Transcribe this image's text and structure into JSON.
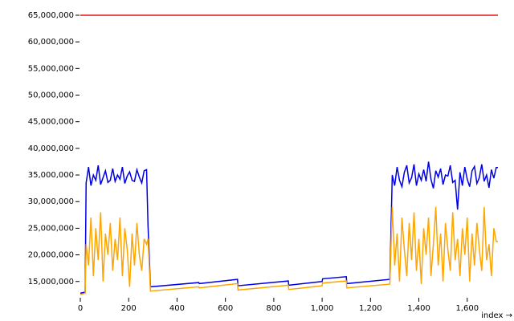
{
  "chart_data": {
    "type": "line",
    "x_label": "index →",
    "xlim": [
      0,
      1727
    ],
    "ylim": [
      12100000,
      65600000
    ],
    "xticks": [
      0,
      200,
      400,
      600,
      800,
      {
        "value": 1000,
        "label": "1,000"
      },
      {
        "value": 1200,
        "label": "1,200"
      },
      {
        "value": 1400,
        "label": "1,400"
      },
      {
        "value": 1600,
        "label": "1,600"
      }
    ],
    "yticks": [
      {
        "value": 15000000,
        "label": "15,000,000"
      },
      {
        "value": 20000000,
        "label": "20,000,000"
      },
      {
        "value": 25000000,
        "label": "25,000,000"
      },
      {
        "value": 30000000,
        "label": "30,000,000"
      },
      {
        "value": 35000000,
        "label": "35,000,000"
      },
      {
        "value": 40000000,
        "label": "40,000,000"
      },
      {
        "value": 45000000,
        "label": "45,000,000"
      },
      {
        "value": 50000000,
        "label": "50,000,000"
      },
      {
        "value": 55000000,
        "label": "55,000,000"
      },
      {
        "value": 60000000,
        "label": "60,000,000"
      },
      {
        "value": 65000000,
        "label": "65,000,000"
      }
    ],
    "series": [
      {
        "color": "#e0161c",
        "x": [
          0,
          1727
        ],
        "values": [
          65000000,
          65000000
        ]
      },
      {
        "color": "#0000e6",
        "x": [
          0,
          20,
          24,
          34,
          44,
          54,
          64,
          74,
          84,
          94,
          104,
          114,
          124,
          134,
          144,
          154,
          164,
          174,
          184,
          194,
          204,
          214,
          224,
          234,
          244,
          254,
          264,
          274,
          280,
          290,
          490,
          492,
          650,
          652,
          860,
          862,
          1000,
          1002,
          1100,
          1102,
          1280,
          1290,
          1300,
          1310,
          1320,
          1330,
          1340,
          1350,
          1360,
          1370,
          1380,
          1390,
          1400,
          1410,
          1420,
          1430,
          1440,
          1450,
          1460,
          1470,
          1480,
          1490,
          1500,
          1510,
          1520,
          1530,
          1540,
          1550,
          1560,
          1570,
          1580,
          1590,
          1600,
          1610,
          1620,
          1630,
          1640,
          1650,
          1660,
          1670,
          1680,
          1690,
          1700,
          1710,
          1720,
          1727
        ],
        "values": [
          12800000,
          13000000,
          33500000,
          36500000,
          33000000,
          35000000,
          34000000,
          36800000,
          33200000,
          34500000,
          35800000,
          33600000,
          34000000,
          36200000,
          33800000,
          35000000,
          34200000,
          36500000,
          33400000,
          34800000,
          35600000,
          34000000,
          33800000,
          36000000,
          34600000,
          33500000,
          35800000,
          36000000,
          25500000,
          14000000,
          14800000,
          14600000,
          15400000,
          14200000,
          15100000,
          14300000,
          15000000,
          15500000,
          15900000,
          14600000,
          15400000,
          35000000,
          33000000,
          36500000,
          34000000,
          32800000,
          35500000,
          36800000,
          33500000,
          34500000,
          37000000,
          33000000,
          35200000,
          34000000,
          36000000,
          33800000,
          37500000,
          34200000,
          32500000,
          35800000,
          34600000,
          36200000,
          33200000,
          35000000,
          34800000,
          36800000,
          33600000,
          34000000,
          28500000,
          35500000,
          33000000,
          36500000,
          34200000,
          32800000,
          35800000,
          36600000,
          33400000,
          34500000,
          37000000,
          33800000,
          35000000,
          32600000,
          36000000,
          34400000,
          36400000,
          36400000
        ]
      },
      {
        "color": "#ffa500",
        "x": [
          0,
          20,
          24,
          34,
          44,
          54,
          64,
          74,
          84,
          94,
          104,
          114,
          124,
          134,
          144,
          154,
          164,
          174,
          184,
          194,
          204,
          214,
          224,
          234,
          244,
          254,
          264,
          274,
          280,
          290,
          490,
          492,
          650,
          652,
          860,
          862,
          1000,
          1002,
          1100,
          1102,
          1280,
          1290,
          1300,
          1310,
          1320,
          1330,
          1340,
          1350,
          1360,
          1370,
          1380,
          1390,
          1400,
          1410,
          1420,
          1430,
          1440,
          1450,
          1460,
          1470,
          1480,
          1490,
          1500,
          1510,
          1520,
          1530,
          1540,
          1550,
          1560,
          1570,
          1580,
          1590,
          1600,
          1610,
          1620,
          1630,
          1640,
          1650,
          1660,
          1670,
          1680,
          1690,
          1700,
          1710,
          1720,
          1727
        ],
        "values": [
          12500000,
          12800000,
          22000000,
          18000000,
          27000000,
          16000000,
          25000000,
          19000000,
          28000000,
          15000000,
          24000000,
          20000000,
          26000000,
          17000000,
          23000000,
          19000000,
          27000000,
          16000000,
          25000000,
          21000000,
          14000000,
          24000000,
          18000000,
          26000000,
          20000000,
          17000000,
          23000000,
          22000000,
          23000000,
          13200000,
          14000000,
          13800000,
          14600000,
          13400000,
          14300000,
          13500000,
          14200000,
          14700000,
          15100000,
          13800000,
          14500000,
          29000000,
          18000000,
          24000000,
          15000000,
          27000000,
          21000000,
          16000000,
          26000000,
          19000000,
          28000000,
          17000000,
          23000000,
          14500000,
          25000000,
          20000000,
          27000000,
          16000000,
          22000000,
          29000000,
          18000000,
          24000000,
          15000000,
          26000000,
          21000000,
          17000000,
          28000000,
          19000000,
          23000000,
          16000000,
          25000000,
          20000000,
          27000000,
          15000000,
          24000000,
          18000000,
          26000000,
          21000000,
          17000000,
          29000000,
          19000000,
          22000000,
          16000000,
          25000000,
          22500000,
          22500000
        ]
      }
    ]
  }
}
